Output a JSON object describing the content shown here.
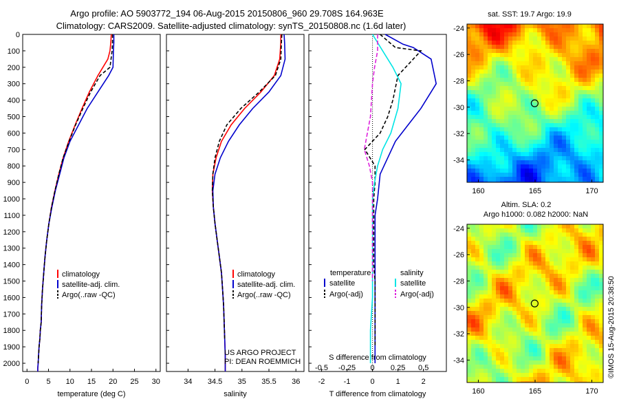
{
  "titles": {
    "line1": "Argo profile: AO 5903772_194 06-Aug-2015 20150806_960 29.708S 164.963E",
    "line2": "Climatology: CARS2009. Satellite-adjusted climatology: synTS_20150808.nc (1.6d later)"
  },
  "notes": {
    "project": "US ARGO PROJECT",
    "pi": "PI: DEAN ROEMMICH",
    "s_diff_label": "S difference from climatology",
    "credit": "©IMOS 15-Aug-2015 20:38:50"
  },
  "maps": {
    "sst_title": "sat. SST: 19.7 Argo: 19.9",
    "sla_title1": "Altim. SLA: 0.2",
    "sla_title2": "Argo h1000: 0.082 h2000: NaN",
    "yticks": [
      "-24",
      "-26",
      "-28",
      "-30",
      "-32",
      "-34"
    ],
    "xticks": [
      "160",
      "165",
      "170"
    ],
    "xlim": [
      159,
      171
    ],
    "ylim": [
      -35.7,
      -23.7
    ],
    "argo_marker": {
      "lon": 164.963,
      "lat": -29.708
    }
  },
  "legend": {
    "climatology": "climatology",
    "satellite": "satellite-adj. clim.",
    "argo": "Argo(..raw -QC)",
    "temperature": "temperature",
    "salinity": "salinity",
    "sat_short": "satellite",
    "argo_adj": "Argo(-adj)"
  },
  "colors": {
    "climatology": "#ff0000",
    "satellite": "#0000cc",
    "argo": "#000000",
    "salinity_sat": "#00e5e5",
    "salinity_argo": "#dd22dd"
  },
  "chart_data": [
    {
      "type": "line",
      "xlabel": "temperature (deg C)",
      "ylabel": "",
      "xlim": [
        -1,
        31
      ],
      "ylim": [
        2050,
        0
      ],
      "xticks": [
        0,
        5,
        10,
        15,
        20,
        25,
        30
      ],
      "yticks": [
        0,
        100,
        200,
        300,
        400,
        500,
        600,
        700,
        800,
        900,
        1000,
        1100,
        1200,
        1300,
        1400,
        1500,
        1600,
        1700,
        1800,
        1900,
        2000
      ],
      "series": [
        {
          "name": "climatology",
          "x": [
            19.6,
            19.5,
            19.3,
            18.8,
            16.5,
            14.5,
            12.8,
            11.2,
            9.7,
            8.4,
            7.4,
            6.5,
            5.7,
            5.1,
            4.6,
            4.2,
            3.9,
            3.6,
            3.4,
            3.3,
            3.1,
            3.0,
            2.8,
            2.7,
            2.6,
            2.5,
            2.5
          ],
          "y": [
            0,
            50,
            100,
            150,
            250,
            350,
            450,
            550,
            650,
            750,
            850,
            950,
            1050,
            1150,
            1250,
            1350,
            1450,
            1550,
            1650,
            1750,
            1800,
            1850,
            1900,
            1950,
            2000,
            2030,
            2050
          ]
        },
        {
          "name": "satellite-adj. clim.",
          "x": [
            20.2,
            20.2,
            20.1,
            20.0,
            19.0,
            16.5,
            14.0,
            12.0,
            10.0,
            8.6,
            7.6,
            6.6,
            5.8,
            5.1,
            4.6,
            4.2,
            3.9,
            3.6,
            3.4,
            3.3,
            3.1,
            3.0,
            2.8,
            2.7,
            2.6,
            2.5,
            2.5
          ],
          "y": [
            0,
            50,
            100,
            200,
            250,
            350,
            450,
            550,
            650,
            750,
            850,
            950,
            1050,
            1150,
            1250,
            1350,
            1450,
            1550,
            1650,
            1750,
            1800,
            1850,
            1900,
            1950,
            2000,
            2030,
            2050
          ]
        },
        {
          "name": "Argo(..raw -QC)",
          "x": [
            19.9,
            19.9,
            19.8,
            19.3,
            17.0,
            14.8,
            13.0,
            11.3,
            9.8,
            8.4,
            7.4,
            6.5,
            5.7,
            5.1,
            4.6,
            4.2,
            3.9,
            3.6,
            3.4,
            3.3,
            3.1,
            3.0,
            2.8,
            2.7,
            2.6
          ],
          "y": [
            0,
            50,
            100,
            200,
            250,
            350,
            450,
            550,
            650,
            750,
            850,
            950,
            1050,
            1150,
            1250,
            1350,
            1450,
            1550,
            1650,
            1750,
            1800,
            1850,
            1900,
            1950,
            2000
          ]
        }
      ]
    },
    {
      "type": "line",
      "xlabel": "salinity",
      "ylabel": "",
      "xlim": [
        33.6,
        36.15
      ],
      "ylim": [
        2050,
        0
      ],
      "xticks": [
        34,
        34.5,
        35,
        35.5,
        36
      ],
      "series": [
        {
          "name": "climatology",
          "x": [
            35.72,
            35.72,
            35.7,
            35.6,
            35.35,
            35.05,
            34.8,
            34.62,
            34.52,
            34.46,
            34.45,
            34.47,
            34.5,
            34.54,
            34.58,
            34.62,
            34.64,
            34.66,
            34.67,
            34.68,
            34.69,
            34.69
          ],
          "y": [
            0,
            50,
            150,
            250,
            350,
            450,
            550,
            650,
            750,
            850,
            950,
            1050,
            1150,
            1250,
            1350,
            1450,
            1550,
            1650,
            1750,
            1850,
            1950,
            2050
          ]
        },
        {
          "name": "satellite-adj. clim.",
          "x": [
            35.78,
            35.79,
            35.8,
            35.72,
            35.5,
            35.2,
            34.95,
            34.75,
            34.6,
            34.5,
            34.46,
            34.47,
            34.5,
            34.54,
            34.58,
            34.62,
            34.64,
            34.66,
            34.67,
            34.68,
            34.69,
            34.69
          ],
          "y": [
            0,
            50,
            150,
            250,
            350,
            450,
            550,
            650,
            750,
            850,
            950,
            1050,
            1150,
            1250,
            1350,
            1450,
            1550,
            1650,
            1750,
            1850,
            1950,
            2050
          ]
        },
        {
          "name": "Argo(..raw -QC)",
          "x": [
            35.74,
            35.73,
            35.72,
            35.62,
            35.32,
            34.98,
            34.72,
            34.58,
            34.5,
            34.46,
            34.45,
            34.47,
            34.5,
            34.54,
            34.58,
            34.62,
            34.64,
            34.66,
            34.67,
            34.68
          ],
          "y": [
            0,
            50,
            150,
            250,
            350,
            450,
            550,
            650,
            750,
            850,
            950,
            1050,
            1150,
            1250,
            1350,
            1450,
            1550,
            1650,
            1750,
            1850
          ]
        }
      ]
    },
    {
      "type": "line",
      "xlabel": "T difference from climatology",
      "xlim": [
        -2.5,
        2.9
      ],
      "ylim": [
        2050,
        0
      ],
      "xticks": [
        -2,
        -1,
        0,
        1,
        2
      ],
      "xticks_salinity": [
        "-0.5",
        "-0.25",
        "0",
        "0.25",
        "0.5"
      ],
      "series": [
        {
          "name": "temperature satellite",
          "x": [
            0.5,
            1.2,
            1.6,
            2.3,
            2.5,
            2.3,
            1.9,
            1.4,
            0.9,
            0.6,
            0.3,
            0.2,
            0.1,
            0.1,
            0.1,
            0.1,
            0.1,
            0.1,
            0.1,
            0.1,
            0.1
          ],
          "y": [
            0,
            60,
            80,
            150,
            300,
            350,
            450,
            550,
            650,
            750,
            850,
            1000,
            1100,
            1200,
            1300,
            1400,
            1500,
            1600,
            1700,
            1800,
            2000
          ]
        },
        {
          "name": "temperature Argo(-adj)",
          "x": [
            0.3,
            0.6,
            0.9,
            1.9,
            1.0,
            0.8,
            0.6,
            0.3,
            -0.3,
            0.1,
            0.1,
            0.05,
            0.05,
            0.05,
            0.1,
            0.1,
            0.1,
            0.1,
            0.1
          ],
          "y": [
            0,
            40,
            80,
            100,
            250,
            400,
            500,
            600,
            700,
            800,
            900,
            1000,
            1200,
            1400,
            1500,
            1600,
            1700,
            1800,
            1900
          ]
        },
        {
          "name": "salinity satellite",
          "x": [
            0.0,
            0.1,
            0.2,
            0.28,
            0.25,
            0.18,
            0.1,
            0.05,
            0.02,
            0.0,
            0.0,
            0.0,
            0.0,
            -0.02,
            -0.02
          ],
          "y": [
            0,
            100,
            200,
            300,
            450,
            600,
            700,
            800,
            900,
            1000,
            1200,
            1400,
            1600,
            1800,
            2000
          ]
        },
        {
          "name": "salinity Argo(-adj)",
          "x": [
            0.05,
            0.05,
            0.02,
            0.0,
            -0.02,
            -0.08,
            -0.03,
            0.0,
            0.0,
            0.0,
            0.0
          ],
          "y": [
            0,
            100,
            200,
            300,
            500,
            700,
            800,
            900,
            1100,
            1300,
            1500
          ]
        }
      ]
    }
  ]
}
